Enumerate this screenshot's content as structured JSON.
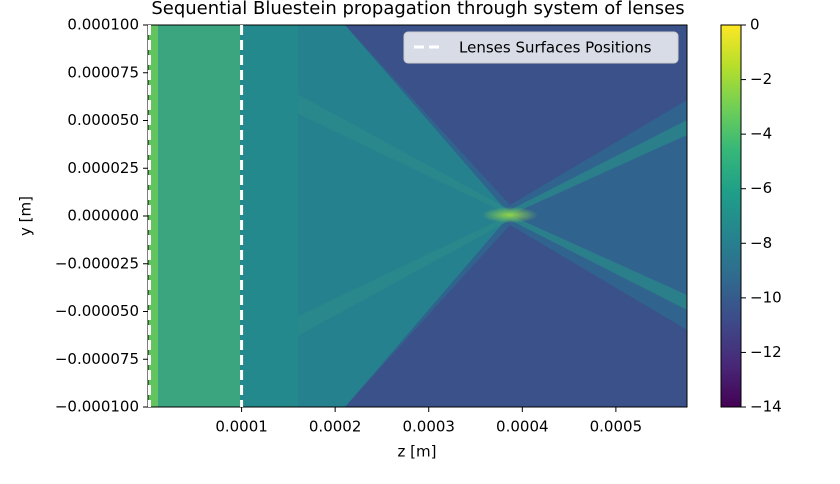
{
  "chart_data": {
    "type": "heatmap",
    "title": "Sequential Bluestein propagation through system of lenses",
    "x_label": "z [m]",
    "y_label": "y [m]",
    "xlim": [
      0,
      0.000576
    ],
    "ylim": [
      -0.0001,
      0.0001
    ],
    "xticks": [
      {
        "value": 0.0001,
        "label": "0.0001"
      },
      {
        "value": 0.0002,
        "label": "0.0002"
      },
      {
        "value": 0.0003,
        "label": "0.0003"
      },
      {
        "value": 0.0004,
        "label": "0.0004"
      },
      {
        "value": 0.0005,
        "label": "0.0005"
      }
    ],
    "yticks": [
      {
        "value": -0.0001,
        "label": "−0.000100"
      },
      {
        "value": -7.5e-05,
        "label": "−0.000075"
      },
      {
        "value": -5e-05,
        "label": "−0.000050"
      },
      {
        "value": -2.5e-05,
        "label": "−0.000025"
      },
      {
        "value": 0,
        "label": "0.000000"
      },
      {
        "value": 2.5e-05,
        "label": "0.000025"
      },
      {
        "value": 5e-05,
        "label": "0.000050"
      },
      {
        "value": 7.5e-05,
        "label": "0.000075"
      },
      {
        "value": 0.0001,
        "label": "0.000100"
      }
    ],
    "colorbar": {
      "lim": [
        -14,
        0
      ],
      "colormap": "viridis",
      "ticks": [
        {
          "value": 0,
          "label": "0"
        },
        {
          "value": -2,
          "label": "−2"
        },
        {
          "value": -4,
          "label": "−4"
        },
        {
          "value": -6,
          "label": "−6"
        },
        {
          "value": -8,
          "label": "−8"
        },
        {
          "value": -10,
          "label": "−10"
        },
        {
          "value": -12,
          "label": "−12"
        },
        {
          "value": -14,
          "label": "−14"
        }
      ]
    },
    "lenses": {
      "name": "Lenses Surfaces Positions",
      "color": "#ffffff",
      "x": [
        0,
        0.0001
      ]
    },
    "legend": "upper right"
  }
}
